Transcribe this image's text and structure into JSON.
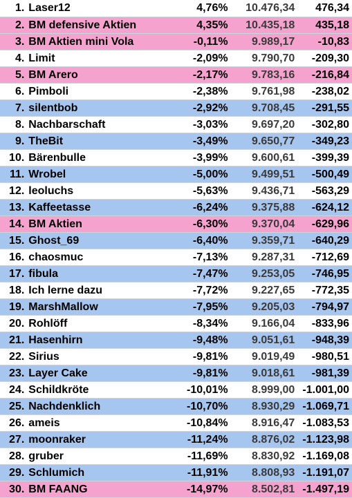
{
  "colors": {
    "white": "#ffffff",
    "blue": "#a7c6ef",
    "pink": "#f6a2cf"
  },
  "rows": [
    {
      "rank": "1.",
      "name": "Laser12",
      "pct": "4,76%",
      "value": "10.476,34",
      "diff": "476,34",
      "bg": "white"
    },
    {
      "rank": "2.",
      "name": "BM defensive Aktien",
      "pct": "4,35%",
      "value": "10.435,18",
      "diff": "435,18",
      "bg": "pink"
    },
    {
      "rank": "3.",
      "name": "BM Aktien mini Vola",
      "pct": "-0,11%",
      "value": "9.989,17",
      "diff": "-10,83",
      "bg": "pink"
    },
    {
      "rank": "4.",
      "name": "Limit",
      "pct": "-2,09%",
      "value": "9.790,70",
      "diff": "-209,30",
      "bg": "white"
    },
    {
      "rank": "5.",
      "name": "BM Arero",
      "pct": "-2,17%",
      "value": "9.783,16",
      "diff": "-216,84",
      "bg": "pink"
    },
    {
      "rank": "6.",
      "name": "Pimboli",
      "pct": "-2,38%",
      "value": "9.761,98",
      "diff": "-238,02",
      "bg": "white"
    },
    {
      "rank": "7.",
      "name": "silentbob",
      "pct": "-2,92%",
      "value": "9.708,45",
      "diff": "-291,55",
      "bg": "blue"
    },
    {
      "rank": "8.",
      "name": "Nachbarschaft",
      "pct": "-3,03%",
      "value": "9.697,20",
      "diff": "-302,80",
      "bg": "white"
    },
    {
      "rank": "9.",
      "name": "TheBit",
      "pct": "-3,49%",
      "value": "9.650,77",
      "diff": "-349,23",
      "bg": "blue"
    },
    {
      "rank": "10.",
      "name": "Bärenbulle",
      "pct": "-3,99%",
      "value": "9.600,61",
      "diff": "-399,39",
      "bg": "white"
    },
    {
      "rank": "11.",
      "name": "Wrobel",
      "pct": "-5,00%",
      "value": "9.499,51",
      "diff": "-500,49",
      "bg": "blue"
    },
    {
      "rank": "12.",
      "name": "leoluchs",
      "pct": "-5,63%",
      "value": "9.436,71",
      "diff": "-563,29",
      "bg": "white"
    },
    {
      "rank": "13.",
      "name": "Kaffeetasse",
      "pct": "-6,24%",
      "value": "9.375,88",
      "diff": "-624,12",
      "bg": "blue"
    },
    {
      "rank": "14.",
      "name": "BM Aktien",
      "pct": "-6,30%",
      "value": "9.370,04",
      "diff": "-629,96",
      "bg": "pink"
    },
    {
      "rank": "15.",
      "name": "Ghost_69",
      "pct": "-6,40%",
      "value": "9.359,71",
      "diff": "-640,29",
      "bg": "blue"
    },
    {
      "rank": "16.",
      "name": "chaosmuc",
      "pct": "-7,13%",
      "value": "9.287,31",
      "diff": "-712,69",
      "bg": "white"
    },
    {
      "rank": "17.",
      "name": "fibula",
      "pct": "-7,47%",
      "value": "9.253,05",
      "diff": "-746,95",
      "bg": "blue"
    },
    {
      "rank": "18.",
      "name": "Ich lerne dazu",
      "pct": "-7,72%",
      "value": "9.227,65",
      "diff": "-772,35",
      "bg": "white"
    },
    {
      "rank": "19.",
      "name": "MarshMallow",
      "pct": "-7,95%",
      "value": "9.205,03",
      "diff": "-794,97",
      "bg": "blue"
    },
    {
      "rank": "20.",
      "name": "Rohlöff",
      "pct": "-8,34%",
      "value": "9.166,04",
      "diff": "-833,96",
      "bg": "white"
    },
    {
      "rank": "21.",
      "name": "Hasenhirn",
      "pct": "-9,48%",
      "value": "9.051,61",
      "diff": "-948,39",
      "bg": "blue"
    },
    {
      "rank": "22.",
      "name": "Sirius",
      "pct": "-9,81%",
      "value": "9.019,49",
      "diff": "-980,51",
      "bg": "white"
    },
    {
      "rank": "23.",
      "name": "Layer Cake",
      "pct": "-9,81%",
      "value": "9.018,61",
      "diff": "-981,39",
      "bg": "blue"
    },
    {
      "rank": "24.",
      "name": "Schildkröte",
      "pct": "-10,01%",
      "value": "8.999,00",
      "diff": "-1.001,00",
      "bg": "white"
    },
    {
      "rank": "25.",
      "name": "Nachdenklich",
      "pct": "-10,70%",
      "value": "8.930,29",
      "diff": "-1.069,71",
      "bg": "blue"
    },
    {
      "rank": "26.",
      "name": "ameis",
      "pct": "-10,84%",
      "value": "8.916,47",
      "diff": "-1.083,53",
      "bg": "white"
    },
    {
      "rank": "27.",
      "name": "moonraker",
      "pct": "-11,24%",
      "value": "8.876,02",
      "diff": "-1.123,98",
      "bg": "blue"
    },
    {
      "rank": "28.",
      "name": "gruber",
      "pct": "-11,69%",
      "value": "8.830,92",
      "diff": "-1.169,08",
      "bg": "white"
    },
    {
      "rank": "29.",
      "name": "Schlumich",
      "pct": "-11,91%",
      "value": "8.808,93",
      "diff": "-1.191,07",
      "bg": "blue"
    },
    {
      "rank": "30.",
      "name": "BM FAANG",
      "pct": "-14,97%",
      "value": "8.502,81",
      "diff": "-1.497,19",
      "bg": "pink"
    }
  ]
}
